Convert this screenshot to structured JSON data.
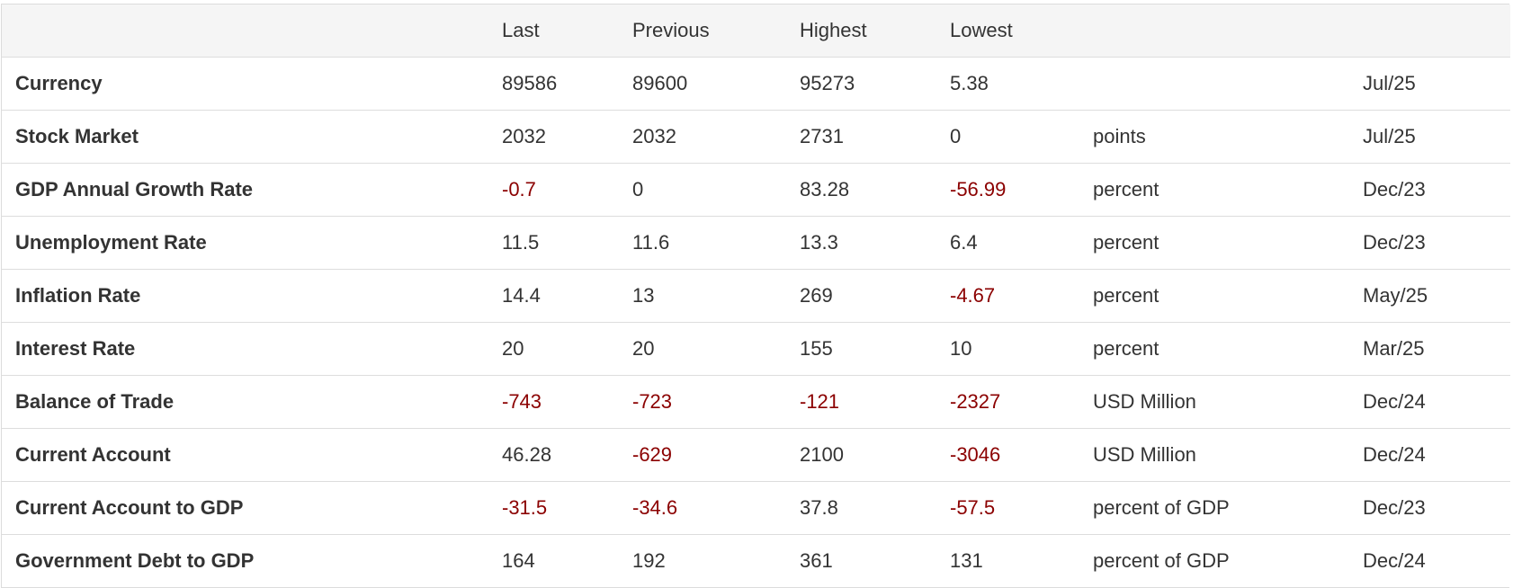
{
  "header": {
    "name": "",
    "last": "Last",
    "previous": "Previous",
    "highest": "Highest",
    "lowest": "Lowest",
    "unit": "",
    "date": ""
  },
  "colors": {
    "negative": "#8b0000",
    "text": "#333333",
    "header_bg": "#f5f5f5"
  },
  "rows": [
    {
      "name": "Currency",
      "last": "89586",
      "previous": "89600",
      "highest": "95273",
      "lowest": "5.38",
      "unit": "",
      "date": "Jul/25"
    },
    {
      "name": "Stock Market",
      "last": "2032",
      "previous": "2032",
      "highest": "2731",
      "lowest": "0",
      "unit": "points",
      "date": "Jul/25"
    },
    {
      "name": "GDP Annual Growth Rate",
      "last": "-0.7",
      "previous": "0",
      "highest": "83.28",
      "lowest": "-56.99",
      "unit": "percent",
      "date": "Dec/23"
    },
    {
      "name": "Unemployment Rate",
      "last": "11.5",
      "previous": "11.6",
      "highest": "13.3",
      "lowest": "6.4",
      "unit": "percent",
      "date": "Dec/23"
    },
    {
      "name": "Inflation Rate",
      "last": "14.4",
      "previous": "13",
      "highest": "269",
      "lowest": "-4.67",
      "unit": "percent",
      "date": "May/25"
    },
    {
      "name": "Interest Rate",
      "last": "20",
      "previous": "20",
      "highest": "155",
      "lowest": "10",
      "unit": "percent",
      "date": "Mar/25"
    },
    {
      "name": "Balance of Trade",
      "last": "-743",
      "previous": "-723",
      "highest": "-121",
      "lowest": "-2327",
      "unit": "USD Million",
      "date": "Dec/24"
    },
    {
      "name": "Current Account",
      "last": "46.28",
      "previous": "-629",
      "highest": "2100",
      "lowest": "-3046",
      "unit": "USD Million",
      "date": "Dec/24"
    },
    {
      "name": "Current Account to GDP",
      "last": "-31.5",
      "previous": "-34.6",
      "highest": "37.8",
      "lowest": "-57.5",
      "unit": "percent of GDP",
      "date": "Dec/23"
    },
    {
      "name": "Government Debt to GDP",
      "last": "164",
      "previous": "192",
      "highest": "361",
      "lowest": "131",
      "unit": "percent of GDP",
      "date": "Dec/24"
    }
  ]
}
